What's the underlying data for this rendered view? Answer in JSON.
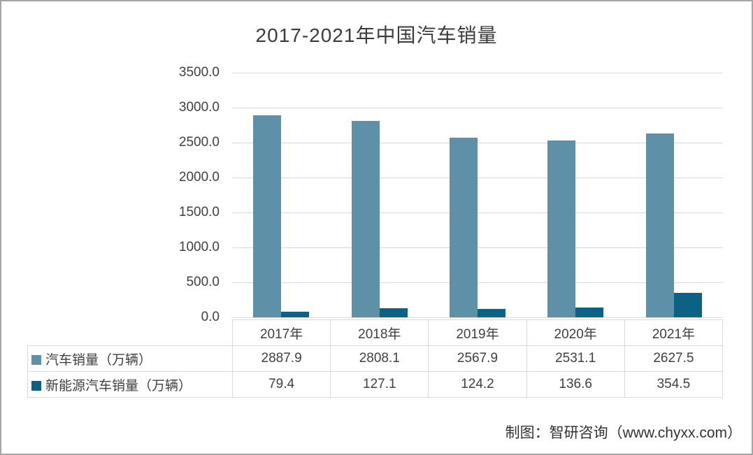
{
  "title": "2017-2021年中国汽车销量",
  "attribution": "制图：智研咨询（www.chyxx.com）",
  "colors": {
    "auto_sales_bar": "#5e90a8",
    "nev_sales_bar": "#0b6285",
    "gridline": "#d9d9d9",
    "table_border": "#d9d9d9",
    "text": "#3f3f3f",
    "frame_border": "#a6a6a6"
  },
  "chart_data": {
    "type": "bar",
    "title": "2017-2021年中国汽车销量",
    "categories": [
      "2017年",
      "2018年",
      "2019年",
      "2020年",
      "2021年"
    ],
    "series": [
      {
        "name": "汽车销量（万辆）",
        "color": "#5e90a8",
        "values": [
          2887.9,
          2808.1,
          2567.9,
          2531.1,
          2627.5
        ]
      },
      {
        "name": "新能源汽车销量（万辆）",
        "color": "#0b6285",
        "values": [
          79.4,
          127.1,
          124.2,
          136.6,
          354.5
        ]
      }
    ],
    "xlabel": "",
    "ylabel": "",
    "ylim": [
      0,
      3500
    ],
    "ytick_step": 500,
    "ytick_labels": [
      "0.0",
      "500.0",
      "1000.0",
      "1500.0",
      "2000.0",
      "2500.0",
      "3000.0",
      "3500.0"
    ],
    "grid": true,
    "legend_position": "table-left-column"
  }
}
